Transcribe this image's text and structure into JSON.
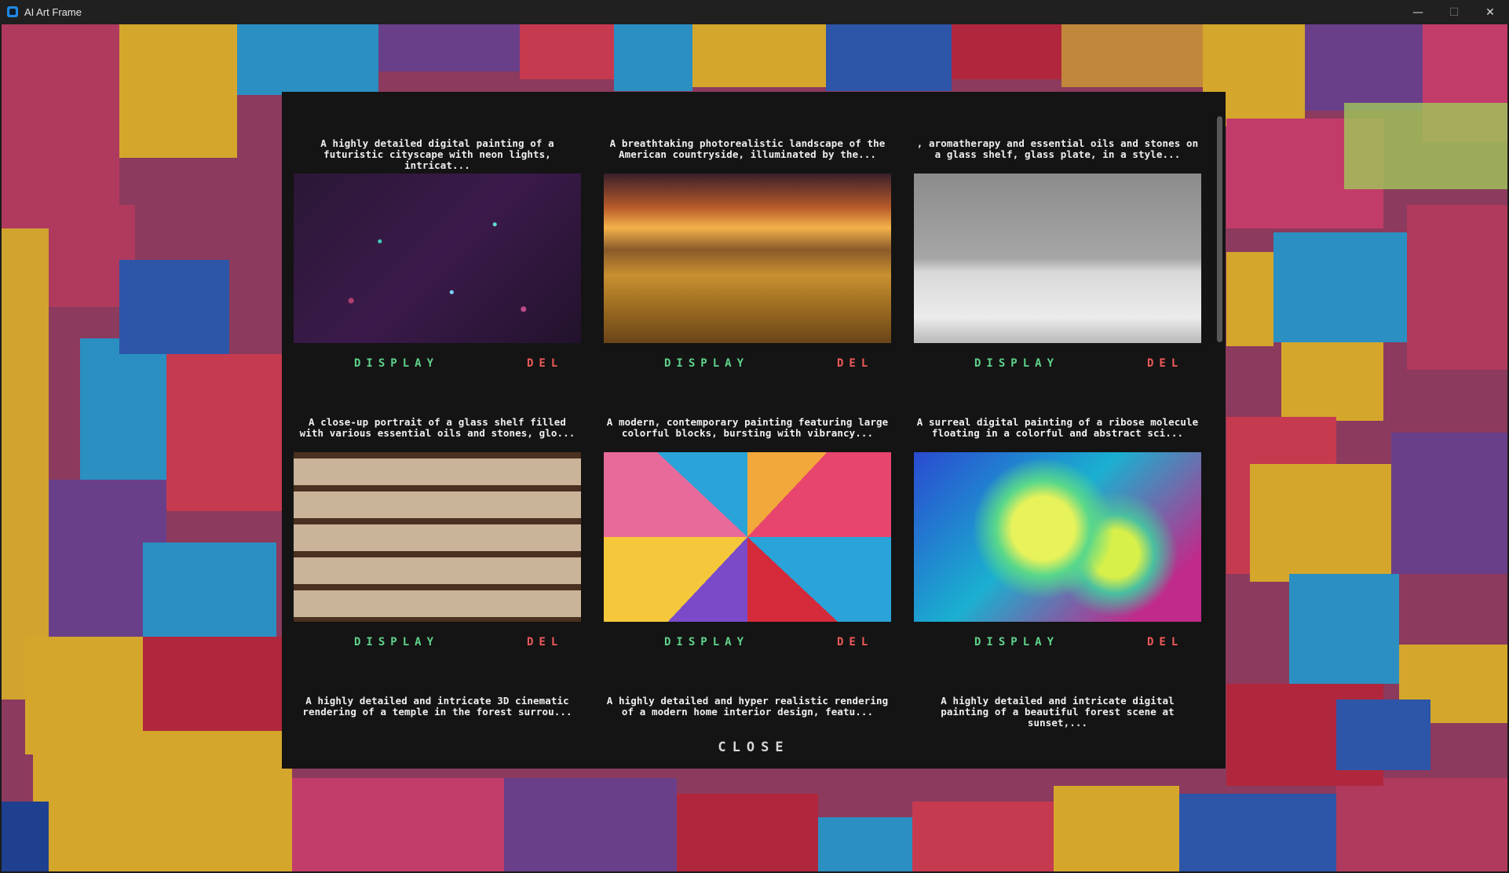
{
  "window": {
    "title": "AI Art Frame",
    "icon": "app-icon",
    "minimize_glyph": "—",
    "maximize_glyph": "☐",
    "close_glyph": "✕"
  },
  "gallery": {
    "display_label": "DISPLAY",
    "delete_label": "DEL",
    "close_label": "CLOSE",
    "items": [
      {
        "caption": "A highly detailed digital painting of a futuristic cityscape with neon lights, intricat...",
        "image": "neon-cityscape-sparkles"
      },
      {
        "caption": "A breathtaking photorealistic landscape of the American countryside, illuminated by the...",
        "image": "sunset-countryside"
      },
      {
        "caption": ", aromatherapy and essential oils and stones on a glass shelf, glass plate, in a style...",
        "image": "essential-oils-and-stones"
      },
      {
        "caption": "A close-up portrait of a glass shelf filled with various essential oils and stones, glo...",
        "image": "glass-shelf-bottles"
      },
      {
        "caption": "A modern, contemporary painting featuring large colorful blocks, bursting with vibrancy...",
        "image": "colorful-blocks-painting"
      },
      {
        "caption": "A surreal digital painting of a ribose molecule floating in a colorful and abstract sci...",
        "image": "ribose-molecule-abstract"
      },
      {
        "caption": "A highly detailed and intricate 3D cinematic rendering of a temple in the forest surrou...",
        "image": "forest-temple"
      },
      {
        "caption": "A highly detailed and hyper realistic rendering of a modern home interior design, featu...",
        "image": "modern-home-interior"
      },
      {
        "caption": "A highly detailed and intricate digital painting of a beautiful forest scene at sunset,...",
        "image": "forest-sunset"
      }
    ]
  },
  "colors": {
    "display": "#5fd28a",
    "delete": "#ef5a5a",
    "panel": "#141414"
  }
}
